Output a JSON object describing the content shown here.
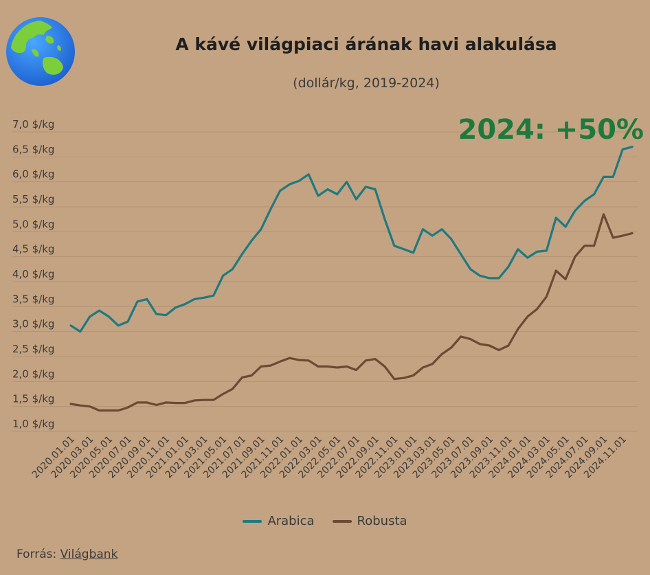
{
  "header": {
    "title": "A kávé világpiaci árának havi alakulása",
    "subtitle": "(dollár/kg, 2019-2024)"
  },
  "source": {
    "label": "Forrás:",
    "link_text": "Világbank"
  },
  "colors": {
    "background": "#c4a382",
    "arabica": "#1e7a80",
    "robusta": "#6b4a34",
    "highlight": "#1e7a3c",
    "grid": "#b39374"
  },
  "chart_data": {
    "type": "line",
    "title": "A kávé világpiaci árának havi alakulása",
    "subtitle": "(dollár/kg, 2019-2024)",
    "yunit": " $/kg",
    "ylim": [
      1.0,
      7.0
    ],
    "yticks": [
      "7,0 $/kg",
      "6,5 $/kg",
      "6,0 $/kg",
      "5,5 $/kg",
      "5,0 $/kg",
      "4,5 $/kg",
      "4,0 $/kg",
      "3,5 $/kg",
      "3,0 $/kg",
      "2,5 $/kg",
      "2,0 $/kg",
      "1,5 $/kg",
      "1,0 $/kg"
    ],
    "grid": true,
    "legend_position": "bottom",
    "xticks": [
      "2020.01.01",
      "2020.03.01",
      "2020.05.01",
      "2020.07.01",
      "2020.09.01",
      "2020.11.01",
      "2021.01.01",
      "2021.03.01",
      "2021.05.01",
      "2021.07.01",
      "2021.09.01",
      "2021.11.01",
      "2022.01.01",
      "2022.03.01",
      "2022.05.01",
      "2022.07.01",
      "2022.09.01",
      "2022.11.01",
      "2023.01.01",
      "2023.03.01",
      "2023.05.01",
      "2023.07.01",
      "2023.09.01",
      "2023.11.01",
      "2024.01.01",
      "2024.03.01",
      "2024.05.01",
      "2024.07.01",
      "2024.09.01",
      "2024.11.01"
    ],
    "x": [
      "2020.01",
      "2020.02",
      "2020.03",
      "2020.04",
      "2020.05",
      "2020.06",
      "2020.07",
      "2020.08",
      "2020.09",
      "2020.10",
      "2020.11",
      "2020.12",
      "2021.01",
      "2021.02",
      "2021.03",
      "2021.04",
      "2021.05",
      "2021.06",
      "2021.07",
      "2021.08",
      "2021.09",
      "2021.10",
      "2021.11",
      "2021.12",
      "2022.01",
      "2022.02",
      "2022.03",
      "2022.04",
      "2022.05",
      "2022.06",
      "2022.07",
      "2022.08",
      "2022.09",
      "2022.10",
      "2022.11",
      "2022.12",
      "2023.01",
      "2023.02",
      "2023.03",
      "2023.04",
      "2023.05",
      "2023.06",
      "2023.07",
      "2023.08",
      "2023.09",
      "2023.10",
      "2023.11",
      "2023.12",
      "2024.01",
      "2024.02",
      "2024.03",
      "2024.04",
      "2024.05",
      "2024.06",
      "2024.07",
      "2024.08",
      "2024.09",
      "2024.10",
      "2024.11",
      "2024.12"
    ],
    "series": [
      {
        "name": "Arabica",
        "color": "#1e7a80",
        "values": [
          3.12,
          3.0,
          3.3,
          3.42,
          3.3,
          3.12,
          3.2,
          3.6,
          3.65,
          3.35,
          3.33,
          3.48,
          3.55,
          3.65,
          3.68,
          3.72,
          4.12,
          4.25,
          4.55,
          4.82,
          5.05,
          5.45,
          5.82,
          5.95,
          6.02,
          6.15,
          5.72,
          5.85,
          5.75,
          6.0,
          5.65,
          5.9,
          5.85,
          5.25,
          4.72,
          4.65,
          4.58,
          5.05,
          4.92,
          5.05,
          4.85,
          4.55,
          4.25,
          4.12,
          4.07,
          4.07,
          4.3,
          4.65,
          4.48,
          4.6,
          4.62,
          5.28,
          5.1,
          5.42,
          5.62,
          5.75,
          6.1,
          6.1,
          6.65,
          6.7
        ]
      },
      {
        "name": "Robusta",
        "color": "#6b4a34",
        "values": [
          1.55,
          1.52,
          1.5,
          1.42,
          1.42,
          1.42,
          1.48,
          1.58,
          1.58,
          1.53,
          1.58,
          1.57,
          1.57,
          1.62,
          1.63,
          1.63,
          1.75,
          1.85,
          2.08,
          2.12,
          2.3,
          2.32,
          2.4,
          2.47,
          2.43,
          2.42,
          2.3,
          2.3,
          2.28,
          2.3,
          2.23,
          2.42,
          2.45,
          2.3,
          2.05,
          2.07,
          2.12,
          2.28,
          2.35,
          2.55,
          2.68,
          2.9,
          2.85,
          2.75,
          2.72,
          2.63,
          2.72,
          3.05,
          3.3,
          3.45,
          3.7,
          4.22,
          4.05,
          4.5,
          4.72,
          4.72,
          5.35,
          4.88,
          4.92,
          4.97
        ]
      }
    ],
    "annotation": "2024: +50%"
  }
}
